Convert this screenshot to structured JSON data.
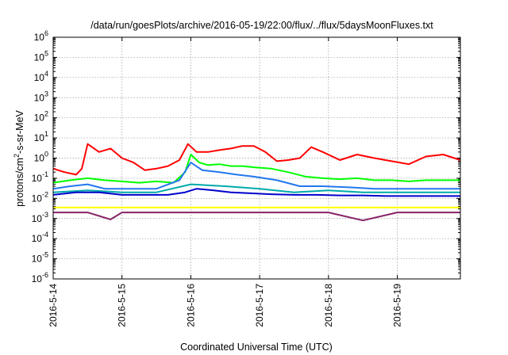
{
  "chart_data": {
    "type": "line",
    "title": "/data/run/goesPlots/archive/2016-05-19/22:00/flux/../flux/5daysMoonFluxes.txt",
    "xlabel": "Coordinated Universal Time (UTC)",
    "ylabel": {
      "base": "protons/cm",
      "sup": "2",
      "rest": "-s-sr-MeV"
    },
    "x_scale": "time",
    "xlim": [
      "2016-05-14T00:00",
      "2016-05-19T22:00"
    ],
    "x_ticks": [
      "2016-5-14",
      "2016-5-15",
      "2016-5-16",
      "2016-5-17",
      "2016-5-18",
      "2016-5-19"
    ],
    "y_scale": "log",
    "ylim": [
      1e-06,
      1000000.0
    ],
    "y_ticks": [
      {
        "base": "10",
        "exp": "-6"
      },
      {
        "base": "10",
        "exp": "-5"
      },
      {
        "base": "10",
        "exp": "-4"
      },
      {
        "base": "10",
        "exp": "-3"
      },
      {
        "base": "10",
        "exp": "-2"
      },
      {
        "base": "10",
        "exp": "-1"
      },
      {
        "base": "10",
        "exp": "0"
      },
      {
        "base": "10",
        "exp": "1"
      },
      {
        "base": "10",
        "exp": "2"
      },
      {
        "base": "10",
        "exp": "3"
      },
      {
        "base": "10",
        "exp": "4"
      },
      {
        "base": "10",
        "exp": "5"
      },
      {
        "base": "10",
        "exp": "6"
      }
    ],
    "grid": true,
    "series": [
      {
        "color": "#ff0000",
        "x": [
          "2016-05-14T00:00",
          "2016-05-14T04:00",
          "2016-05-14T08:00",
          "2016-05-14T10:00",
          "2016-05-14T12:00",
          "2016-05-14T16:00",
          "2016-05-14T20:00",
          "2016-05-15T00:00",
          "2016-05-15T04:00",
          "2016-05-15T08:00",
          "2016-05-15T12:00",
          "2016-05-15T16:00",
          "2016-05-15T20:00",
          "2016-05-15T23:00",
          "2016-05-16T02:00",
          "2016-05-16T06:00",
          "2016-05-16T10:00",
          "2016-05-16T14:00",
          "2016-05-16T18:00",
          "2016-05-16T22:00",
          "2016-05-17T02:00",
          "2016-05-17T06:00",
          "2016-05-17T10:00",
          "2016-05-17T14:00",
          "2016-05-17T18:00",
          "2016-05-17T22:00",
          "2016-05-18T04:00",
          "2016-05-18T10:00",
          "2016-05-18T16:00",
          "2016-05-18T22:00",
          "2016-05-19T04:00",
          "2016-05-19T10:00",
          "2016-05-19T16:00",
          "2016-05-19T22:00"
        ],
        "y": [
          0.3,
          0.2,
          0.15,
          0.3,
          5,
          2,
          3,
          1,
          0.6,
          0.25,
          0.3,
          0.4,
          0.8,
          5,
          2,
          2,
          2.5,
          3,
          4,
          4,
          2,
          0.7,
          0.8,
          1,
          3.5,
          2,
          0.8,
          1.5,
          1,
          0.7,
          0.5,
          1.2,
          1.5,
          0.8
        ]
      },
      {
        "color": "#00ff00",
        "x": [
          "2016-05-14T00:00",
          "2016-05-14T06:00",
          "2016-05-14T12:00",
          "2016-05-14T18:00",
          "2016-05-15T00:00",
          "2016-05-15T06:00",
          "2016-05-15T12:00",
          "2016-05-15T18:00",
          "2016-05-15T22:00",
          "2016-05-16T00:00",
          "2016-05-16T03:00",
          "2016-05-16T06:00",
          "2016-05-16T10:00",
          "2016-05-16T14:00",
          "2016-05-16T18:00",
          "2016-05-16T22:00",
          "2016-05-17T04:00",
          "2016-05-17T10:00",
          "2016-05-17T16:00",
          "2016-05-17T22:00",
          "2016-05-18T04:00",
          "2016-05-18T10:00",
          "2016-05-18T16:00",
          "2016-05-18T22:00",
          "2016-05-19T04:00",
          "2016-05-19T10:00",
          "2016-05-19T16:00",
          "2016-05-19T22:00"
        ],
        "y": [
          0.06,
          0.08,
          0.1,
          0.08,
          0.07,
          0.06,
          0.07,
          0.06,
          0.2,
          1.5,
          0.6,
          0.45,
          0.5,
          0.4,
          0.4,
          0.35,
          0.3,
          0.2,
          0.12,
          0.1,
          0.09,
          0.1,
          0.08,
          0.08,
          0.07,
          0.08,
          0.08,
          0.08
        ]
      },
      {
        "color": "#00aaaa",
        "x": [
          "2016-05-14T00:00",
          "2016-05-14T12:00",
          "2016-05-15T00:00",
          "2016-05-15T12:00",
          "2016-05-16T00:00",
          "2016-05-16T12:00",
          "2016-05-17T00:00",
          "2016-05-17T12:00",
          "2016-05-18T00:00",
          "2016-05-18T12:00",
          "2016-05-19T00:00",
          "2016-05-19T12:00",
          "2016-05-19T22:00"
        ],
        "y": [
          0.02,
          0.025,
          0.02,
          0.02,
          0.05,
          0.04,
          0.03,
          0.02,
          0.025,
          0.02,
          0.02,
          0.02,
          0.02
        ]
      },
      {
        "color": "#2277ee",
        "x": [
          "2016-05-14T00:00",
          "2016-05-14T06:00",
          "2016-05-14T12:00",
          "2016-05-14T18:00",
          "2016-05-15T00:00",
          "2016-05-15T12:00",
          "2016-05-15T20:00",
          "2016-05-16T00:00",
          "2016-05-16T04:00",
          "2016-05-16T10:00",
          "2016-05-16T16:00",
          "2016-05-16T22:00",
          "2016-05-17T06:00",
          "2016-05-17T14:00",
          "2016-05-17T22:00",
          "2016-05-18T08:00",
          "2016-05-18T16:00",
          "2016-05-19T00:00",
          "2016-05-19T10:00",
          "2016-05-19T22:00"
        ],
        "y": [
          0.03,
          0.04,
          0.05,
          0.03,
          0.03,
          0.03,
          0.08,
          0.6,
          0.25,
          0.2,
          0.15,
          0.12,
          0.08,
          0.04,
          0.04,
          0.035,
          0.03,
          0.03,
          0.03,
          0.03
        ]
      },
      {
        "color": "#0000cc",
        "x": [
          "2016-05-14T00:00",
          "2016-05-14T08:00",
          "2016-05-14T16:00",
          "2016-05-15T00:00",
          "2016-05-15T08:00",
          "2016-05-15T16:00",
          "2016-05-15T22:00",
          "2016-05-16T02:00",
          "2016-05-16T08:00",
          "2016-05-16T14:00",
          "2016-05-16T20:00",
          "2016-05-17T04:00",
          "2016-05-17T12:00",
          "2016-05-17T20:00",
          "2016-05-18T04:00",
          "2016-05-18T12:00",
          "2016-05-18T20:00",
          "2016-05-19T04:00",
          "2016-05-19T12:00",
          "2016-05-19T22:00"
        ],
        "y": [
          0.015,
          0.02,
          0.02,
          0.015,
          0.015,
          0.015,
          0.02,
          0.03,
          0.025,
          0.02,
          0.018,
          0.016,
          0.015,
          0.015,
          0.014,
          0.014,
          0.013,
          0.013,
          0.013,
          0.013
        ]
      },
      {
        "color": "#ffff00",
        "x": [
          "2016-05-14T00:00",
          "2016-05-15T00:00",
          "2016-05-16T00:00",
          "2016-05-17T00:00",
          "2016-05-18T00:00",
          "2016-05-19T00:00",
          "2016-05-19T22:00"
        ],
        "y": [
          0.0035,
          0.0035,
          0.0035,
          0.0035,
          0.0035,
          0.0035,
          0.0035
        ]
      },
      {
        "color": "#882266",
        "x": [
          "2016-05-14T00:00",
          "2016-05-14T12:00",
          "2016-05-14T20:00",
          "2016-05-15T00:00",
          "2016-05-15T12:00",
          "2016-05-16T00:00",
          "2016-05-16T12:00",
          "2016-05-17T00:00",
          "2016-05-17T12:00",
          "2016-05-18T00:00",
          "2016-05-18T12:00",
          "2016-05-19T00:00",
          "2016-05-19T12:00",
          "2016-05-19T22:00"
        ],
        "y": [
          0.002,
          0.002,
          0.0009,
          0.002,
          0.002,
          0.002,
          0.002,
          0.002,
          0.002,
          0.002,
          0.0008,
          0.002,
          0.002,
          0.002
        ]
      }
    ]
  }
}
